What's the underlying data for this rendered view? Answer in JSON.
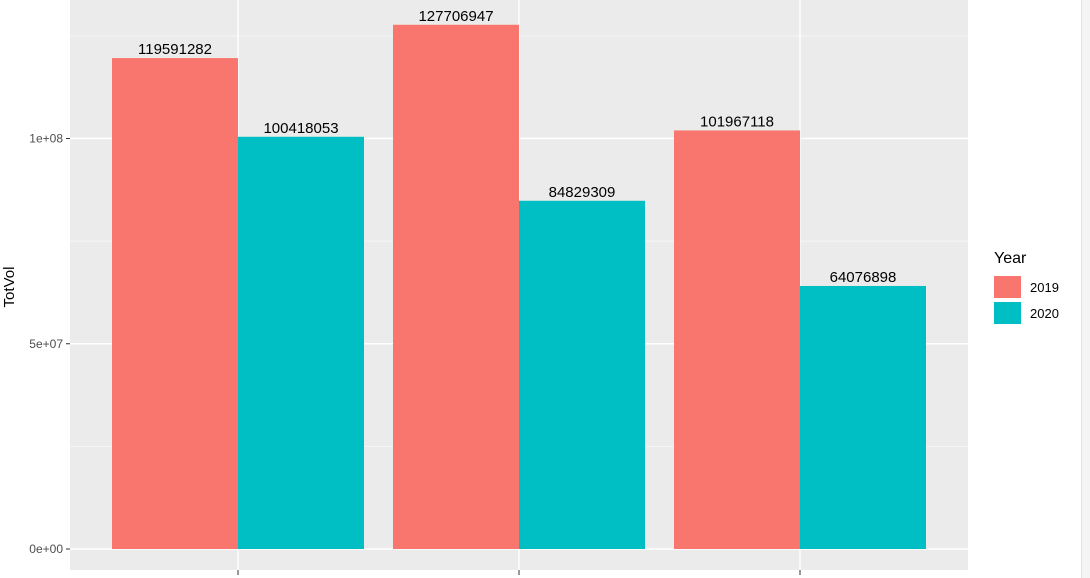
{
  "chart_data": {
    "type": "bar",
    "categories": [
      "",
      "",
      ""
    ],
    "series": [
      {
        "name": "2019",
        "values": [
          119591282,
          127706947,
          101967118
        ]
      },
      {
        "name": "2020",
        "values": [
          100418053,
          84829309,
          64076898
        ]
      }
    ],
    "data_labels": {
      "2019": [
        "119591282",
        "127706947",
        "101967118"
      ],
      "2020": [
        "100418053",
        "84829309",
        "64076898"
      ]
    },
    "title": "",
    "xlabel": "",
    "ylabel": "TotVol",
    "ylim": [
      0,
      130000000
    ],
    "y_ticks": [
      {
        "value": 0,
        "label": "0e+00"
      },
      {
        "value": 50000000,
        "label": "5e+07"
      },
      {
        "value": 100000000,
        "label": "1e+08"
      }
    ],
    "grid": true,
    "legend": {
      "title": "Year",
      "position": "right"
    },
    "colors": {
      "2019": "#F8766D",
      "2020": "#00BFC4",
      "panel": "#EBEBEB",
      "grid": "#FFFFFF"
    }
  }
}
